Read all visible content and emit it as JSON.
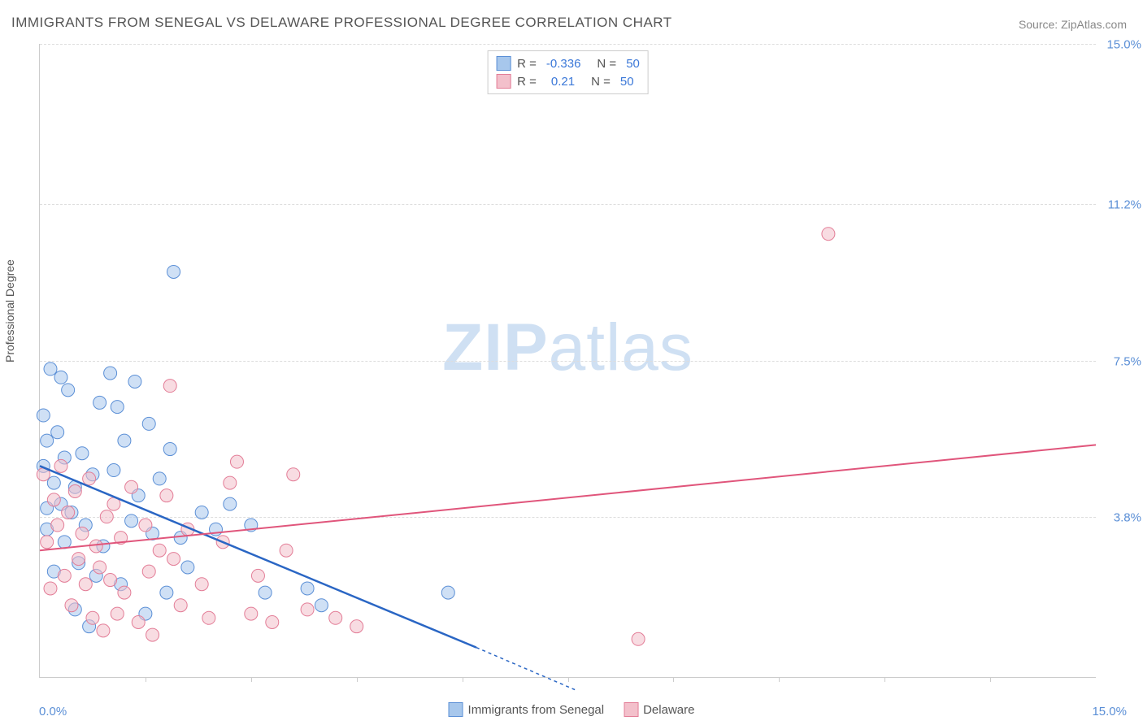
{
  "title": "IMMIGRANTS FROM SENEGAL VS DELAWARE PROFESSIONAL DEGREE CORRELATION CHART",
  "source": "Source: ZipAtlas.com",
  "ylabel": "Professional Degree",
  "watermark": {
    "part1": "ZIP",
    "part2": "atlas"
  },
  "chart": {
    "type": "scatter",
    "xlim": [
      0,
      15
    ],
    "ylim": [
      0,
      15
    ],
    "xaxis_min_label": "0.0%",
    "xaxis_max_label": "15.0%",
    "xtick_positions": [
      1.5,
      3.0,
      4.5,
      6.0,
      7.5,
      9.0,
      10.5,
      12.0,
      13.5
    ],
    "yticks": [
      {
        "v": 3.8,
        "label": "3.8%"
      },
      {
        "v": 7.5,
        "label": "7.5%"
      },
      {
        "v": 11.2,
        "label": "11.2%"
      },
      {
        "v": 15.0,
        "label": "15.0%"
      }
    ],
    "grid_color": "#dddddd",
    "axis_color": "#cccccc",
    "tick_label_color": "#5b8fd6",
    "background_color": "#ffffff",
    "marker_radius": 8,
    "marker_opacity": 0.55,
    "series": [
      {
        "name": "Immigrants from Senegal",
        "fill": "#a7c7ec",
        "stroke": "#5b8fd6",
        "R": -0.336,
        "N": 50,
        "trend": {
          "x1": 0.0,
          "y1": 5.0,
          "x2": 6.2,
          "y2": 0.7,
          "color": "#2a66c4",
          "width": 2.5,
          "extend_dash": {
            "x2": 7.6,
            "y2": -0.3
          }
        },
        "points": [
          [
            0.05,
            6.2
          ],
          [
            0.05,
            5.0
          ],
          [
            0.1,
            4.0
          ],
          [
            0.1,
            3.5
          ],
          [
            0.1,
            5.6
          ],
          [
            0.15,
            7.3
          ],
          [
            0.2,
            4.6
          ],
          [
            0.2,
            2.5
          ],
          [
            0.25,
            5.8
          ],
          [
            0.3,
            7.1
          ],
          [
            0.3,
            4.1
          ],
          [
            0.35,
            3.2
          ],
          [
            0.35,
            5.2
          ],
          [
            0.4,
            6.8
          ],
          [
            0.45,
            3.9
          ],
          [
            0.5,
            4.5
          ],
          [
            0.5,
            1.6
          ],
          [
            0.55,
            2.7
          ],
          [
            0.6,
            5.3
          ],
          [
            0.65,
            3.6
          ],
          [
            0.7,
            1.2
          ],
          [
            0.75,
            4.8
          ],
          [
            0.8,
            2.4
          ],
          [
            0.85,
            6.5
          ],
          [
            0.9,
            3.1
          ],
          [
            1.0,
            7.2
          ],
          [
            1.05,
            4.9
          ],
          [
            1.1,
            6.4
          ],
          [
            1.15,
            2.2
          ],
          [
            1.2,
            5.6
          ],
          [
            1.3,
            3.7
          ],
          [
            1.35,
            7.0
          ],
          [
            1.4,
            4.3
          ],
          [
            1.5,
            1.5
          ],
          [
            1.55,
            6.0
          ],
          [
            1.6,
            3.4
          ],
          [
            1.7,
            4.7
          ],
          [
            1.8,
            2.0
          ],
          [
            1.85,
            5.4
          ],
          [
            1.9,
            9.6
          ],
          [
            2.0,
            3.3
          ],
          [
            2.1,
            2.6
          ],
          [
            2.3,
            3.9
          ],
          [
            2.5,
            3.5
          ],
          [
            2.7,
            4.1
          ],
          [
            3.0,
            3.6
          ],
          [
            3.2,
            2.0
          ],
          [
            3.8,
            2.1
          ],
          [
            4.0,
            1.7
          ],
          [
            5.8,
            2.0
          ]
        ]
      },
      {
        "name": "Delaware",
        "fill": "#f3c0cb",
        "stroke": "#e37d97",
        "R": 0.21,
        "N": 50,
        "trend": {
          "x1": 0.0,
          "y1": 3.0,
          "x2": 15.0,
          "y2": 5.5,
          "color": "#e0557b",
          "width": 2
        },
        "points": [
          [
            0.05,
            4.8
          ],
          [
            0.1,
            3.2
          ],
          [
            0.15,
            2.1
          ],
          [
            0.2,
            4.2
          ],
          [
            0.25,
            3.6
          ],
          [
            0.3,
            5.0
          ],
          [
            0.35,
            2.4
          ],
          [
            0.4,
            3.9
          ],
          [
            0.45,
            1.7
          ],
          [
            0.5,
            4.4
          ],
          [
            0.55,
            2.8
          ],
          [
            0.6,
            3.4
          ],
          [
            0.65,
            2.2
          ],
          [
            0.7,
            4.7
          ],
          [
            0.75,
            1.4
          ],
          [
            0.8,
            3.1
          ],
          [
            0.85,
            2.6
          ],
          [
            0.9,
            1.1
          ],
          [
            0.95,
            3.8
          ],
          [
            1.0,
            2.3
          ],
          [
            1.05,
            4.1
          ],
          [
            1.1,
            1.5
          ],
          [
            1.15,
            3.3
          ],
          [
            1.2,
            2.0
          ],
          [
            1.3,
            4.5
          ],
          [
            1.4,
            1.3
          ],
          [
            1.5,
            3.6
          ],
          [
            1.55,
            2.5
          ],
          [
            1.6,
            1.0
          ],
          [
            1.7,
            3.0
          ],
          [
            1.8,
            4.3
          ],
          [
            1.85,
            6.9
          ],
          [
            1.9,
            2.8
          ],
          [
            2.0,
            1.7
          ],
          [
            2.1,
            3.5
          ],
          [
            2.3,
            2.2
          ],
          [
            2.4,
            1.4
          ],
          [
            2.6,
            3.2
          ],
          [
            2.7,
            4.6
          ],
          [
            2.8,
            5.1
          ],
          [
            3.0,
            1.5
          ],
          [
            3.1,
            2.4
          ],
          [
            3.3,
            1.3
          ],
          [
            3.5,
            3.0
          ],
          [
            3.6,
            4.8
          ],
          [
            3.8,
            1.6
          ],
          [
            4.2,
            1.4
          ],
          [
            4.5,
            1.2
          ],
          [
            8.5,
            0.9
          ],
          [
            11.2,
            10.5
          ]
        ]
      }
    ]
  },
  "legend_bottom": [
    {
      "label": "Immigrants from Senegal",
      "fill": "#a7c7ec",
      "stroke": "#5b8fd6"
    },
    {
      "label": "Delaware",
      "fill": "#f3c0cb",
      "stroke": "#e37d97"
    }
  ]
}
